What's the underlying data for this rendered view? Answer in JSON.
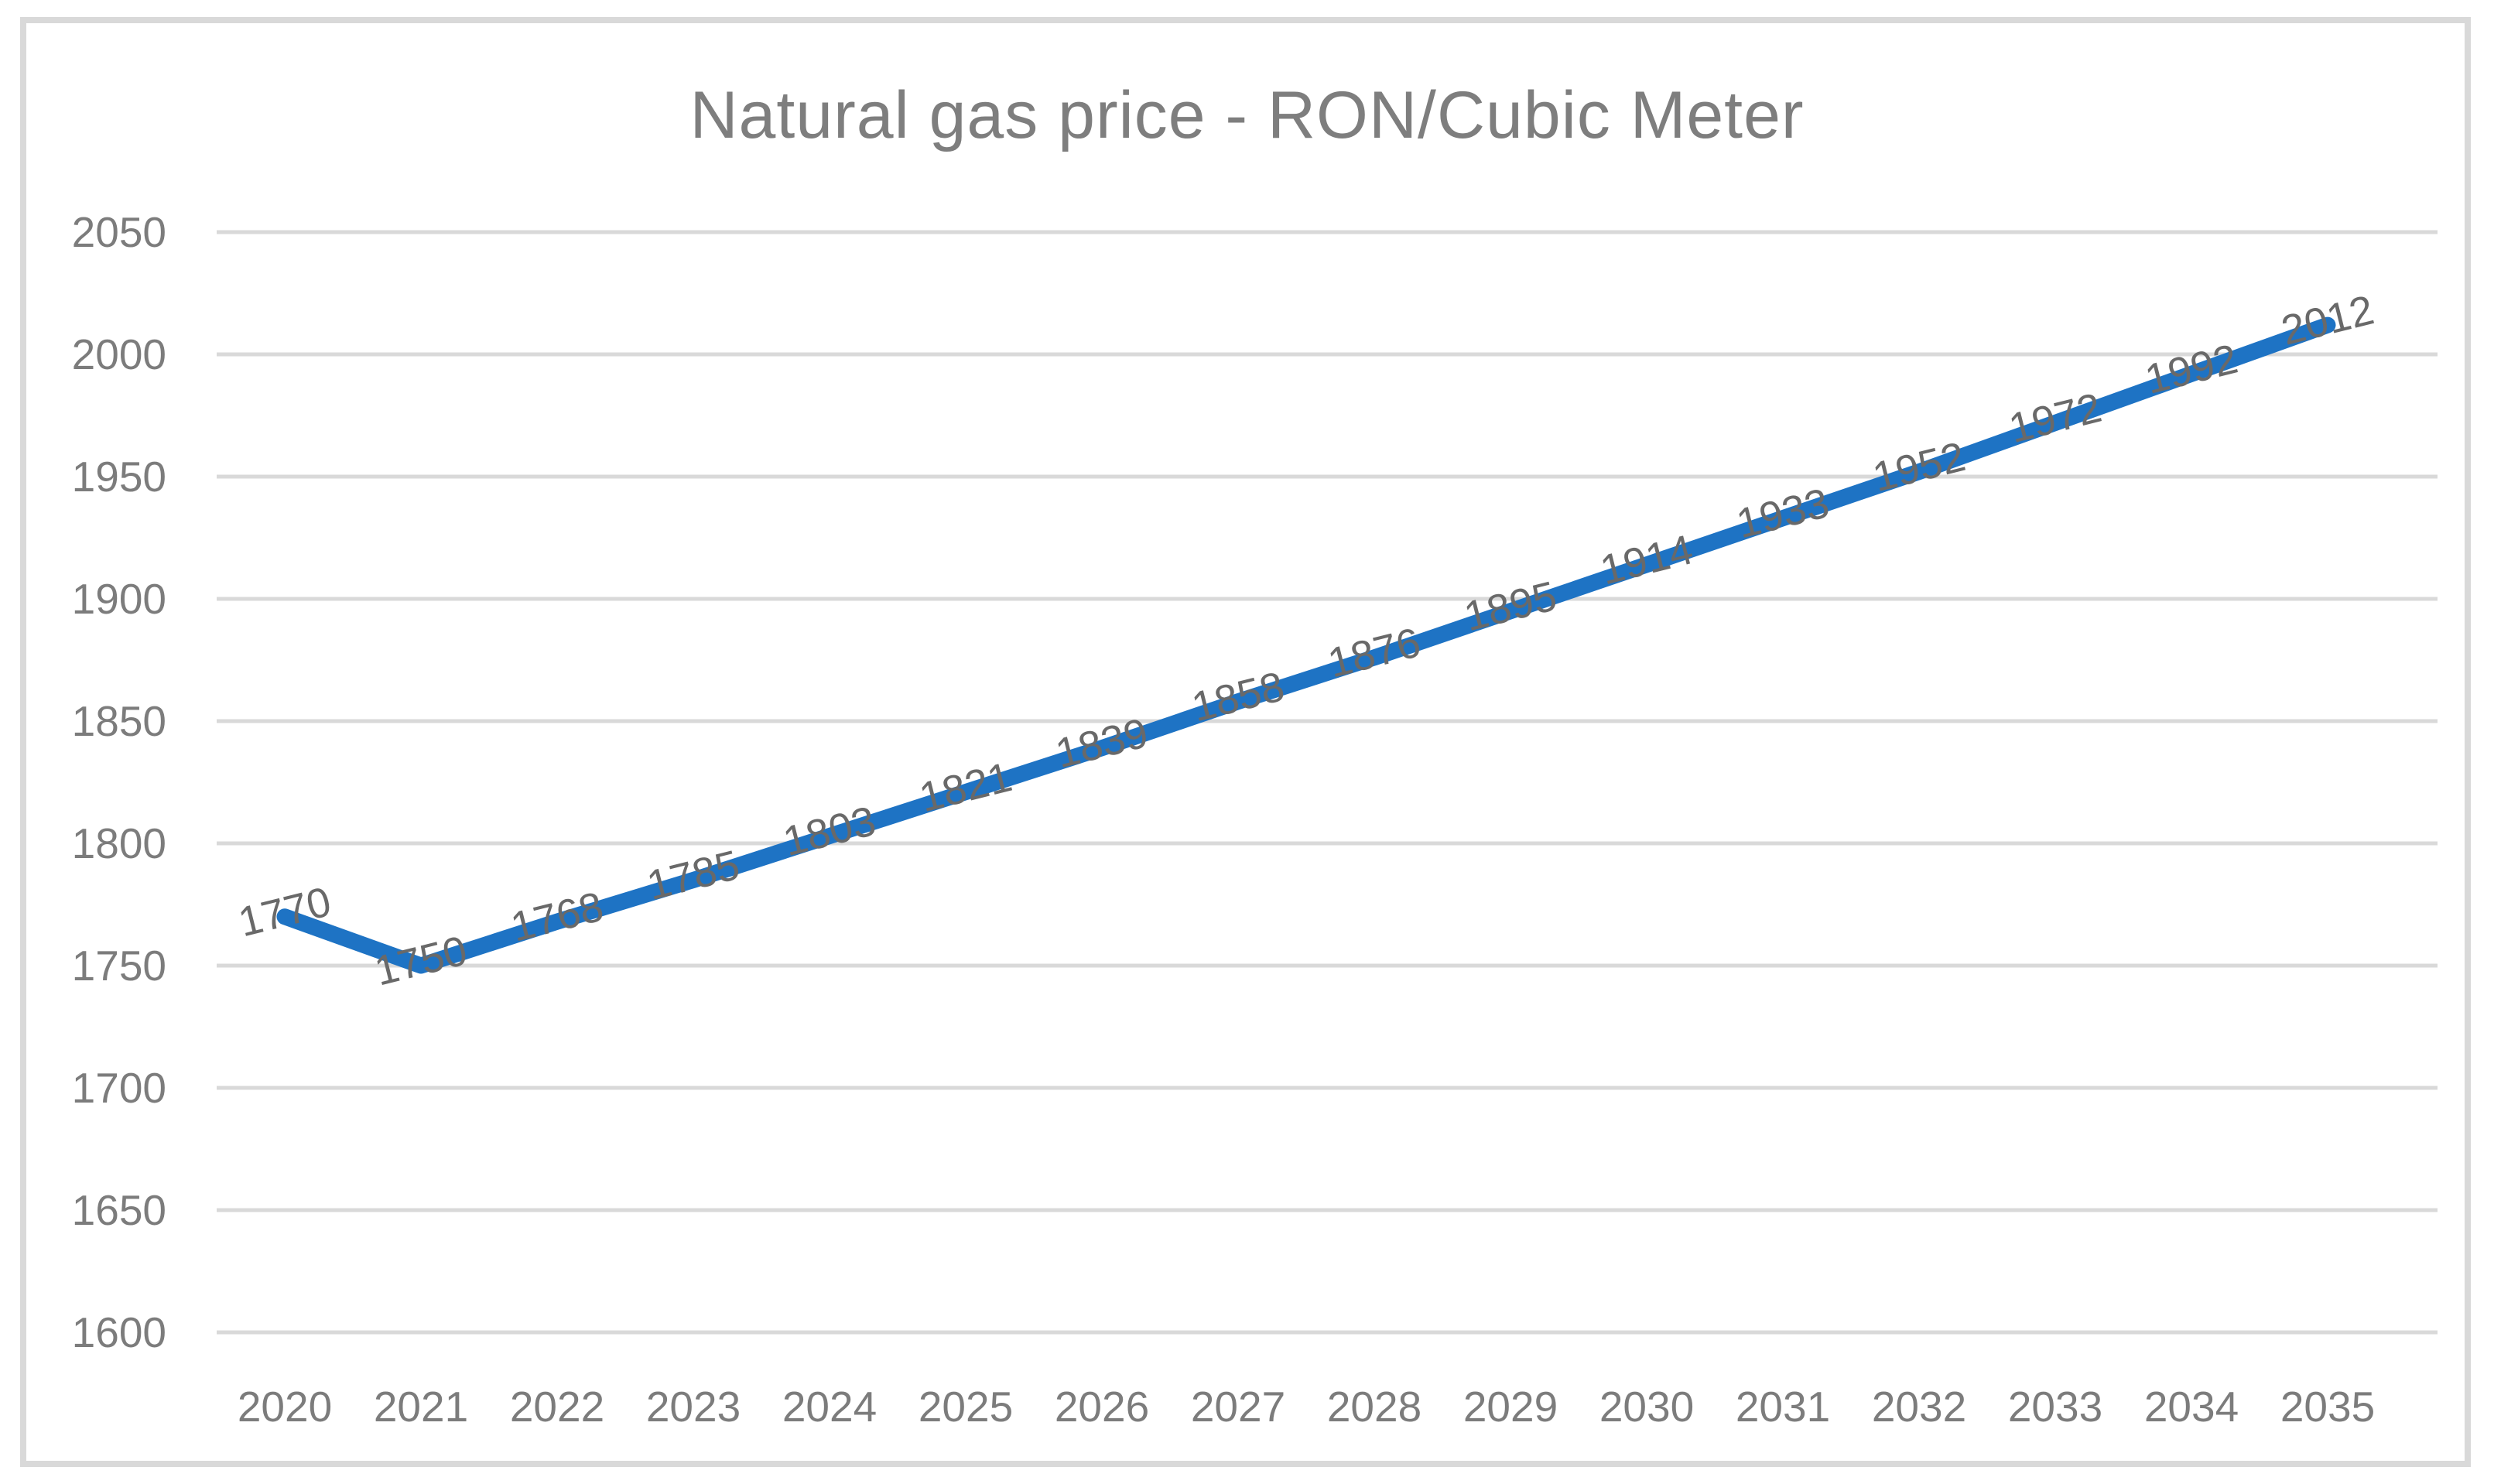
{
  "chart_data": {
    "type": "line",
    "title": "Natural gas price - RON/Cubic Meter",
    "categories": [
      "2020",
      "2021",
      "2022",
      "2023",
      "2024",
      "2025",
      "2026",
      "2027",
      "2028",
      "2029",
      "2030",
      "2031",
      "2032",
      "2033",
      "2034",
      "2035"
    ],
    "values": [
      1770,
      1750,
      1768,
      1785,
      1803,
      1821,
      1839,
      1858,
      1876,
      1895,
      1914,
      1933,
      1952,
      1972,
      1992,
      2012
    ],
    "data_labels_shown": true,
    "xlabel": "",
    "ylabel": "",
    "ylim": [
      1600,
      2050
    ],
    "y_tick_step": 50,
    "y_ticks": [
      "1600",
      "1650",
      "1700",
      "1750",
      "1800",
      "1850",
      "1900",
      "1950",
      "2000",
      "2050"
    ],
    "grid": "horizontal",
    "legend": "none",
    "colors": {
      "series_line": "#1E73C4",
      "title_text": "#7E7E7E",
      "axis_tick_text": "#7C7C7C",
      "data_label_text": "#696969",
      "gridline": "#D9D9D9",
      "frame_border": "#D9D9D9",
      "background": "#FFFFFF"
    }
  }
}
